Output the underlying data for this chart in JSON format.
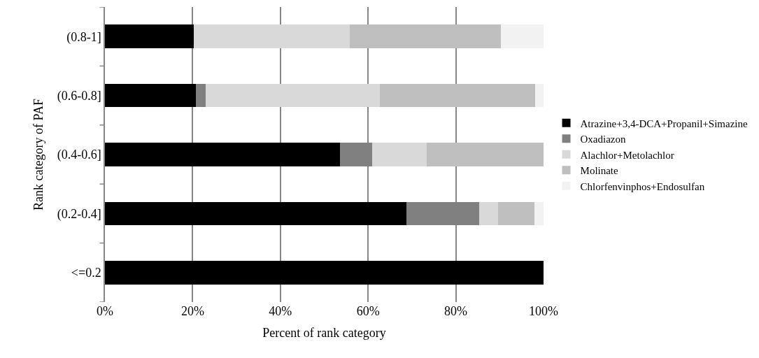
{
  "chart_data": {
    "type": "bar",
    "orientation": "horizontal",
    "stacked": true,
    "ylabel": "Rank category of PAF",
    "xlabel": "Percent of rank category",
    "categories": [
      "(0.8-1]",
      "(0.6-0.8]",
      "(0.4-0.6]",
      "(0.2-0.4]",
      "<=0.2"
    ],
    "series": [
      {
        "name": "Atrazine+3,4-DCA+Propanil+Simazine",
        "color": "#000000",
        "values": [
          20.3,
          20.7,
          53.6,
          68.7,
          100
        ]
      },
      {
        "name": "Oxadiazon",
        "color": "#808080",
        "values": [
          0,
          2.2,
          7.4,
          16.7,
          0
        ]
      },
      {
        "name": "Alachlor+Metolachlor",
        "color": "#d9d9d9",
        "values": [
          35.6,
          39.8,
          12.3,
          4.2,
          0
        ]
      },
      {
        "name": "Molinate",
        "color": "#bfbfbf",
        "values": [
          34.4,
          35.4,
          26.7,
          8.4,
          0
        ]
      },
      {
        "name": "Chlorfenvinphos+Endosulfan",
        "color": "#f2f2f2",
        "values": [
          9.7,
          2.0,
          0,
          2.0,
          0
        ]
      }
    ],
    "xlim": [
      0,
      100
    ],
    "xticks": [
      {
        "value": 0,
        "label": "0%"
      },
      {
        "value": 20,
        "label": "20%"
      },
      {
        "value": 40,
        "label": "40%"
      },
      {
        "value": 60,
        "label": "60%"
      },
      {
        "value": 80,
        "label": "80%"
      },
      {
        "value": 100,
        "label": "100%"
      }
    ],
    "grid": "x",
    "legend": "right"
  }
}
